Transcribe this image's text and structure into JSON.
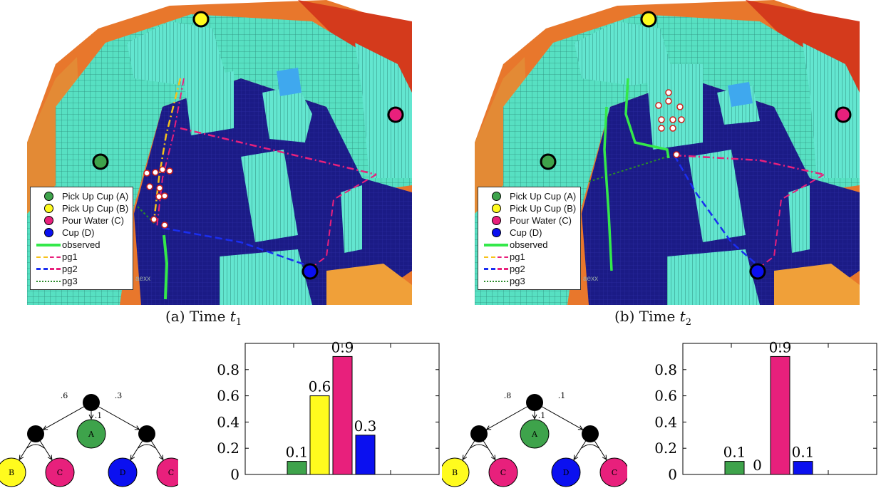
{
  "colors": {
    "green": "#3ea34b",
    "yellow": "#fffb1e",
    "magenta": "#e8207c",
    "blue": "#0b10f0",
    "floor": "#1b1b86",
    "observed": "#34e84a"
  },
  "panels": [
    {
      "caption_prefix": "(a) Time ",
      "caption_var": "t",
      "caption_sub": "1",
      "watermark": "aexx",
      "legend": [
        {
          "label": "Pick Up Cup (A)",
          "marker": "dot",
          "color": "#3ea34b"
        },
        {
          "label": "Pick Up Cup (B)",
          "marker": "dot",
          "color": "#fffb1e"
        },
        {
          "label": "Pour Water (C)",
          "marker": "dot",
          "color": "#e8207c"
        },
        {
          "label": "Cup (D)",
          "marker": "dot",
          "color": "#0b10f0"
        },
        {
          "label": "observed",
          "marker": "line",
          "color": "#34e84a"
        },
        {
          "label": "pg1",
          "marker": "dashdot",
          "color": "#f7c21b"
        },
        {
          "label": "pg2",
          "marker": "dash",
          "color": "#1a2ef0"
        },
        {
          "label": "pg3",
          "marker": "dot-line",
          "color": "#2a8a2a"
        }
      ]
    },
    {
      "caption_prefix": "(b) Time ",
      "caption_var": "t",
      "caption_sub": "2",
      "watermark": "aexx",
      "legend": [
        {
          "label": "Pick Up Cup (A)",
          "marker": "dot",
          "color": "#3ea34b"
        },
        {
          "label": "Pick Up Cup (B)",
          "marker": "dot",
          "color": "#fffb1e"
        },
        {
          "label": "Pour Water (C)",
          "marker": "dot",
          "color": "#e8207c"
        },
        {
          "label": "Cup (D)",
          "marker": "dot",
          "color": "#0b10f0"
        },
        {
          "label": "observed",
          "marker": "line",
          "color": "#34e84a"
        },
        {
          "label": "pg1",
          "marker": "dashdot",
          "color": "#f7c21b"
        },
        {
          "label": "pg2",
          "marker": "dash",
          "color": "#1a2ef0"
        },
        {
          "label": "pg3",
          "marker": "dot-line",
          "color": "#2a8a2a"
        }
      ]
    }
  ],
  "trees": [
    {
      "edge_labels": [
        ".6",
        ".1",
        ".3"
      ],
      "leaves": [
        {
          "label": "A",
          "color": "#3ea34b"
        },
        {
          "label": "B",
          "color": "#fffb1e"
        },
        {
          "label": "C",
          "color": "#e8207c"
        },
        {
          "label": "D",
          "color": "#0b10f0"
        },
        {
          "label": "C",
          "color": "#e8207c"
        }
      ]
    },
    {
      "edge_labels": [
        ".8",
        ".1",
        ".1"
      ],
      "leaves": [
        {
          "label": "A",
          "color": "#3ea34b"
        },
        {
          "label": "B",
          "color": "#fffb1e"
        },
        {
          "label": "C",
          "color": "#e8207c"
        },
        {
          "label": "D",
          "color": "#0b10f0"
        },
        {
          "label": "C",
          "color": "#e8207c"
        }
      ]
    }
  ],
  "chart_data": [
    {
      "type": "bar",
      "categories": [
        "A",
        "B",
        "C",
        "D"
      ],
      "values": [
        0.1,
        0.6,
        0.9,
        0.3
      ],
      "value_labels": [
        "0.1",
        "0.6",
        "0.9",
        "0.3"
      ],
      "colors": [
        "#3ea34b",
        "#fffb1e",
        "#e8207c",
        "#0b10f0"
      ],
      "ylim": [
        0,
        1
      ],
      "yticks": [
        "0",
        "0.2",
        "0.4",
        "0.6",
        "0.8"
      ],
      "title": "",
      "xlabel": "",
      "ylabel": "",
      "grid": true
    },
    {
      "type": "bar",
      "categories": [
        "A",
        "B",
        "C",
        "D"
      ],
      "values": [
        0.1,
        0,
        0.9,
        0.1
      ],
      "value_labels": [
        "0.1",
        "0",
        "0.9",
        "0.1"
      ],
      "colors": [
        "#3ea34b",
        "#fffb1e",
        "#e8207c",
        "#0b10f0"
      ],
      "ylim": [
        0,
        1
      ],
      "yticks": [
        "0",
        "0.2",
        "0.4",
        "0.6",
        "0.8"
      ],
      "title": "",
      "xlabel": "",
      "ylabel": "",
      "grid": true
    }
  ]
}
